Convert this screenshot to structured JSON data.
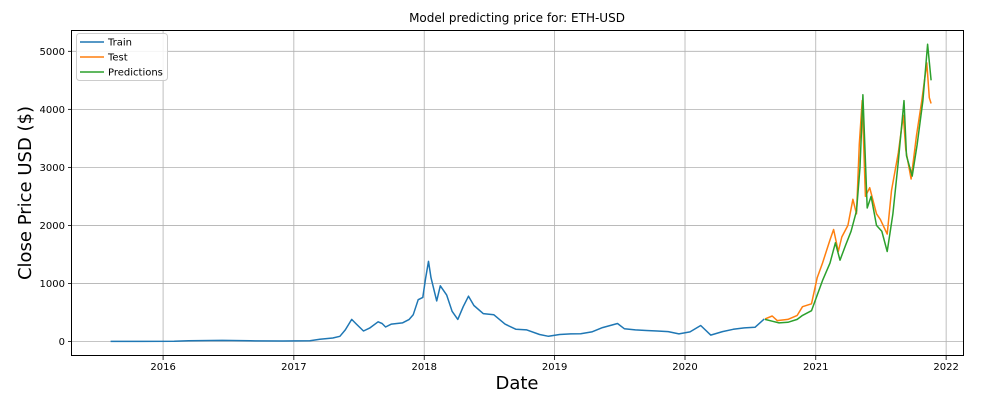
{
  "chart_data": {
    "type": "line",
    "title": "Model predicting price for: ETH-USD",
    "xlabel": "Date",
    "ylabel": "Close Price USD ($)",
    "x_range": [
      "2015-04-21",
      "2022-02-20"
    ],
    "ylim": [
      -250,
      5350
    ],
    "x_ticks": [
      "2016",
      "2017",
      "2018",
      "2019",
      "2020",
      "2021",
      "2022"
    ],
    "y_ticks": [
      0,
      1000,
      2000,
      3000,
      4000,
      5000
    ],
    "grid": true,
    "legend_position": "top-left",
    "series": [
      {
        "name": "Train",
        "color": "#1f77b4",
        "points": [
          [
            "2015-08-07",
            2
          ],
          [
            "2015-11-01",
            1
          ],
          [
            "2016-02-01",
            3
          ],
          [
            "2016-03-12",
            12
          ],
          [
            "2016-06-15",
            18
          ],
          [
            "2016-09-01",
            12
          ],
          [
            "2016-12-01",
            8
          ],
          [
            "2017-02-15",
            12
          ],
          [
            "2017-03-15",
            40
          ],
          [
            "2017-04-20",
            60
          ],
          [
            "2017-05-10",
            90
          ],
          [
            "2017-05-25",
            200
          ],
          [
            "2017-06-12",
            380
          ],
          [
            "2017-06-25",
            300
          ],
          [
            "2017-07-15",
            180
          ],
          [
            "2017-08-01",
            230
          ],
          [
            "2017-08-25",
            340
          ],
          [
            "2017-09-05",
            310
          ],
          [
            "2017-09-15",
            250
          ],
          [
            "2017-10-01",
            300
          ],
          [
            "2017-11-01",
            320
          ],
          [
            "2017-11-20",
            380
          ],
          [
            "2017-12-01",
            460
          ],
          [
            "2017-12-15",
            720
          ],
          [
            "2017-12-28",
            760
          ],
          [
            "2018-01-05",
            1100
          ],
          [
            "2018-01-13",
            1380
          ],
          [
            "2018-01-20",
            1100
          ],
          [
            "2018-02-05",
            700
          ],
          [
            "2018-02-15",
            960
          ],
          [
            "2018-03-05",
            800
          ],
          [
            "2018-03-20",
            520
          ],
          [
            "2018-04-05",
            380
          ],
          [
            "2018-04-20",
            600
          ],
          [
            "2018-05-05",
            780
          ],
          [
            "2018-05-20",
            620
          ],
          [
            "2018-06-15",
            480
          ],
          [
            "2018-07-15",
            460
          ],
          [
            "2018-08-15",
            300
          ],
          [
            "2018-09-15",
            210
          ],
          [
            "2018-10-15",
            200
          ],
          [
            "2018-11-20",
            120
          ],
          [
            "2018-12-15",
            90
          ],
          [
            "2019-01-15",
            120
          ],
          [
            "2019-02-15",
            130
          ],
          [
            "2019-03-15",
            135
          ],
          [
            "2019-04-15",
            165
          ],
          [
            "2019-05-15",
            240
          ],
          [
            "2019-06-26",
            310
          ],
          [
            "2019-07-15",
            220
          ],
          [
            "2019-08-15",
            200
          ],
          [
            "2019-09-15",
            190
          ],
          [
            "2019-10-15",
            180
          ],
          [
            "2019-11-15",
            170
          ],
          [
            "2019-12-15",
            130
          ],
          [
            "2020-01-15",
            165
          ],
          [
            "2020-02-14",
            275
          ],
          [
            "2020-03-13",
            110
          ],
          [
            "2020-04-15",
            170
          ],
          [
            "2020-05-15",
            210
          ],
          [
            "2020-06-15",
            235
          ],
          [
            "2020-07-15",
            245
          ],
          [
            "2020-08-10",
            390
          ]
        ]
      },
      {
        "name": "Test",
        "color": "#ff7f0e",
        "points": [
          [
            "2020-08-12",
            390
          ],
          [
            "2020-09-01",
            440
          ],
          [
            "2020-09-15",
            360
          ],
          [
            "2020-10-15",
            380
          ],
          [
            "2020-11-10",
            450
          ],
          [
            "2020-11-25",
            600
          ],
          [
            "2020-12-20",
            650
          ],
          [
            "2021-01-05",
            1100
          ],
          [
            "2021-01-20",
            1350
          ],
          [
            "2021-02-10",
            1750
          ],
          [
            "2021-02-20",
            1930
          ],
          [
            "2021-03-05",
            1550
          ],
          [
            "2021-03-15",
            1800
          ],
          [
            "2021-04-01",
            2000
          ],
          [
            "2021-04-15",
            2450
          ],
          [
            "2021-04-25",
            2200
          ],
          [
            "2021-05-03",
            3400
          ],
          [
            "2021-05-11",
            4150
          ],
          [
            "2021-05-20",
            2500
          ],
          [
            "2021-06-01",
            2650
          ],
          [
            "2021-06-20",
            2200
          ],
          [
            "2021-07-01",
            2100
          ],
          [
            "2021-07-20",
            1850
          ],
          [
            "2021-08-01",
            2600
          ],
          [
            "2021-08-20",
            3250
          ],
          [
            "2021-09-03",
            3900
          ],
          [
            "2021-09-10",
            3300
          ],
          [
            "2021-09-25",
            2800
          ],
          [
            "2021-10-10",
            3550
          ],
          [
            "2021-10-25",
            4150
          ],
          [
            "2021-11-08",
            4800
          ],
          [
            "2021-11-15",
            4200
          ],
          [
            "2021-11-20",
            4100
          ]
        ]
      },
      {
        "name": "Predictions",
        "color": "#2ca02c",
        "points": [
          [
            "2020-08-12",
            380
          ],
          [
            "2020-09-01",
            350
          ],
          [
            "2020-09-20",
            320
          ],
          [
            "2020-10-15",
            330
          ],
          [
            "2020-11-10",
            380
          ],
          [
            "2020-11-25",
            450
          ],
          [
            "2020-12-20",
            530
          ],
          [
            "2021-01-05",
            800
          ],
          [
            "2021-01-20",
            1050
          ],
          [
            "2021-02-10",
            1350
          ],
          [
            "2021-02-25",
            1700
          ],
          [
            "2021-03-10",
            1400
          ],
          [
            "2021-03-25",
            1650
          ],
          [
            "2021-04-10",
            1900
          ],
          [
            "2021-04-25",
            2250
          ],
          [
            "2021-05-05",
            3000
          ],
          [
            "2021-05-13",
            4250
          ],
          [
            "2021-05-25",
            2300
          ],
          [
            "2021-06-05",
            2500
          ],
          [
            "2021-06-20",
            2000
          ],
          [
            "2021-07-05",
            1900
          ],
          [
            "2021-07-20",
            1550
          ],
          [
            "2021-08-05",
            2200
          ],
          [
            "2021-08-20",
            3100
          ],
          [
            "2021-09-05",
            4150
          ],
          [
            "2021-09-12",
            3200
          ],
          [
            "2021-09-28",
            2850
          ],
          [
            "2021-10-12",
            3400
          ],
          [
            "2021-10-28",
            4150
          ],
          [
            "2021-11-10",
            5120
          ],
          [
            "2021-11-20",
            4500
          ]
        ]
      }
    ]
  }
}
